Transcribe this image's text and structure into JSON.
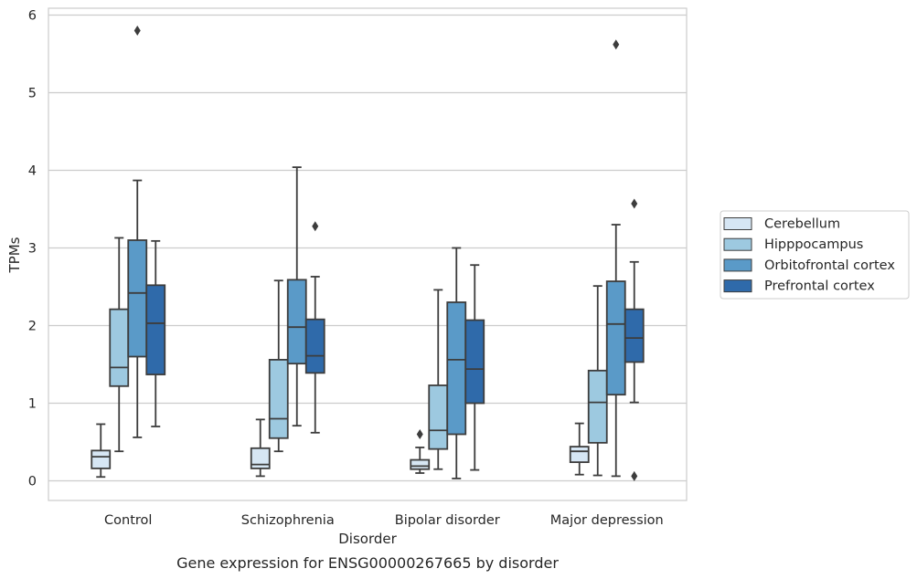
{
  "chart_data": {
    "type": "box",
    "caption": "Gene expression for ENSG00000267665 by disorder",
    "xlabel": "Disorder",
    "ylabel": "TPMs",
    "ylim": [
      -0.25,
      6.1
    ],
    "yticks": [
      0,
      1,
      2,
      3,
      4,
      5,
      6
    ],
    "grid": "horizontal",
    "legend_position": "right",
    "categories": [
      "Control",
      "Schizophrenia",
      "Bipolar disorder",
      "Major depression"
    ],
    "series": [
      {
        "name": "Cerebellum",
        "color": "#d6e6f4",
        "boxes": [
          {
            "min": 0.05,
            "q1": 0.16,
            "median": 0.31,
            "q3": 0.39,
            "max": 0.73,
            "outliers": []
          },
          {
            "min": 0.06,
            "q1": 0.16,
            "median": 0.21,
            "q3": 0.42,
            "max": 0.79,
            "outliers": []
          },
          {
            "min": 0.1,
            "q1": 0.15,
            "median": 0.19,
            "q3": 0.27,
            "max": 0.43,
            "outliers": [
              0.6
            ]
          },
          {
            "min": 0.08,
            "q1": 0.24,
            "median": 0.38,
            "q3": 0.44,
            "max": 0.74,
            "outliers": []
          }
        ]
      },
      {
        "name": "Hipppocampus",
        "color": "#9dc9e0",
        "boxes": [
          {
            "min": 0.38,
            "q1": 1.22,
            "median": 1.46,
            "q3": 2.21,
            "max": 3.13,
            "outliers": []
          },
          {
            "min": 0.38,
            "q1": 0.55,
            "median": 0.8,
            "q3": 1.56,
            "max": 2.58,
            "outliers": []
          },
          {
            "min": 0.15,
            "q1": 0.41,
            "median": 0.65,
            "q3": 1.23,
            "max": 2.46,
            "outliers": []
          },
          {
            "min": 0.07,
            "q1": 0.49,
            "median": 1.01,
            "q3": 1.42,
            "max": 2.51,
            "outliers": []
          }
        ]
      },
      {
        "name": "Orbitofrontal cortex",
        "color": "#5a9ac8",
        "boxes": [
          {
            "min": 0.56,
            "q1": 1.6,
            "median": 2.42,
            "q3": 3.1,
            "max": 3.87,
            "outliers": [
              5.8
            ]
          },
          {
            "min": 0.71,
            "q1": 1.51,
            "median": 1.98,
            "q3": 2.59,
            "max": 4.04,
            "outliers": []
          },
          {
            "min": 0.03,
            "q1": 0.6,
            "median": 1.56,
            "q3": 2.3,
            "max": 3.0,
            "outliers": []
          },
          {
            "min": 0.06,
            "q1": 1.11,
            "median": 2.02,
            "q3": 2.57,
            "max": 3.3,
            "outliers": [
              5.62
            ]
          }
        ]
      },
      {
        "name": "Prefrontal cortex",
        "color": "#2f6aaa",
        "boxes": [
          {
            "min": 0.7,
            "q1": 1.37,
            "median": 2.03,
            "q3": 2.52,
            "max": 3.09,
            "outliers": []
          },
          {
            "min": 0.62,
            "q1": 1.39,
            "median": 1.61,
            "q3": 2.08,
            "max": 2.63,
            "outliers": [
              3.28
            ]
          },
          {
            "min": 0.14,
            "q1": 1.0,
            "median": 1.44,
            "q3": 2.07,
            "max": 2.78,
            "outliers": []
          },
          {
            "min": 1.01,
            "q1": 1.53,
            "median": 1.84,
            "q3": 2.21,
            "max": 2.82,
            "outliers": [
              3.57,
              0.06
            ]
          }
        ]
      }
    ]
  }
}
